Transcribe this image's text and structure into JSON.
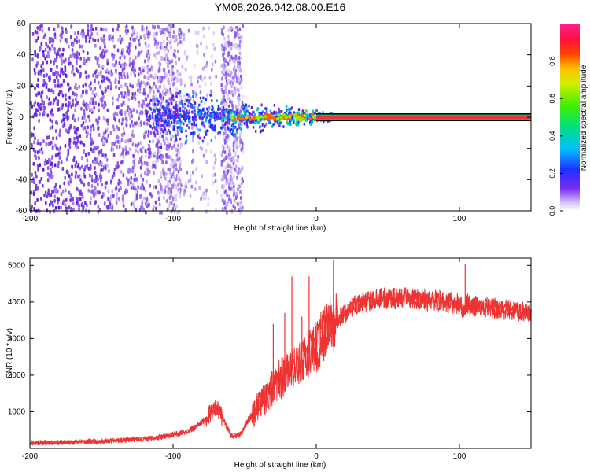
{
  "title": "YM08.2026.042.08.00.E16",
  "colors": {
    "line": "#ee3333",
    "axis": "#000000",
    "scatter_hue": "#6a2ce0",
    "band_outline": "#000000",
    "band_fill": "#e8353a"
  },
  "chart_data": [
    {
      "type": "heatmap",
      "name": "spectrogram",
      "xlabel": "Height of straight line (km)",
      "ylabel": "Frequency (Hz)",
      "xlim": [
        -200,
        150
      ],
      "ylim": [
        -60,
        60
      ],
      "xticks": [
        -200,
        -100,
        0,
        100
      ],
      "yticks": [
        -60,
        -40,
        -20,
        0,
        20,
        40,
        60
      ],
      "xtick_labels": [
        "-200",
        "-100",
        "0",
        "100"
      ],
      "ytick_labels": [
        "-60",
        "-40",
        "-20",
        "0",
        "20",
        "40",
        "60"
      ],
      "features": {
        "carrier_frequency_hz": 0,
        "carrier_band_start_km": 0,
        "noise_region_km": [
          -200,
          -110
        ],
        "transition_region_km": [
          -120,
          15
        ],
        "vertical_noise_strip_km": [
          -67,
          -52
        ]
      },
      "colorbar": {
        "label": "Normalized spectral amplitude",
        "range": [
          0,
          1
        ],
        "ticks": [
          0.0,
          0.2,
          0.4,
          0.6,
          0.8
        ],
        "tick_labels": [
          "0.0",
          "0.2",
          "0.4",
          "0.6",
          "0.8"
        ]
      }
    },
    {
      "type": "line",
      "name": "snr",
      "xlabel": "Height of straight line (km)",
      "ylabel": "SNR (10 * v/v)",
      "xlim": [
        -200,
        150
      ],
      "ylim": [
        0,
        5200
      ],
      "xticks": [
        -200,
        -100,
        0,
        100
      ],
      "yticks": [
        1000,
        2000,
        3000,
        4000,
        5000
      ],
      "xtick_labels": [
        "-200",
        "-100",
        "0",
        "100"
      ],
      "ytick_labels": [
        "1000",
        "2000",
        "3000",
        "4000",
        "5000"
      ],
      "x": [
        -200,
        -180,
        -160,
        -140,
        -120,
        -110,
        -100,
        -95,
        -90,
        -85,
        -80,
        -75,
        -70,
        -68,
        -65,
        -62,
        -60,
        -58,
        -55,
        -52,
        -50,
        -47,
        -45,
        -42,
        -40,
        -37,
        -35,
        -32,
        -30,
        -27,
        -25,
        -22,
        -20,
        -17,
        -15,
        -12,
        -10,
        -7,
        -5,
        -2,
        0,
        5,
        10,
        15,
        20,
        25,
        30,
        35,
        40,
        50,
        60,
        70,
        80,
        90,
        100,
        103,
        105,
        110,
        120,
        130,
        140,
        150
      ],
      "y": [
        150,
        160,
        180,
        210,
        260,
        300,
        370,
        420,
        480,
        560,
        700,
        900,
        1100,
        1000,
        800,
        550,
        380,
        330,
        340,
        420,
        600,
        800,
        900,
        1050,
        1150,
        1300,
        1400,
        1550,
        1650,
        1800,
        1900,
        2000,
        2100,
        2200,
        2250,
        2300,
        2400,
        2500,
        2600,
        2700,
        2800,
        3100,
        3300,
        3550,
        3700,
        3850,
        3950,
        4000,
        4050,
        4100,
        4100,
        4080,
        4060,
        4000,
        3950,
        3700,
        3950,
        3900,
        3850,
        3800,
        3750,
        3700
      ],
      "spikes": [
        {
          "x": -30,
          "y": 3400
        },
        {
          "x": -22,
          "y": 3700
        },
        {
          "x": -17,
          "y": 4700
        },
        {
          "x": -10,
          "y": 3600
        },
        {
          "x": -5,
          "y": 4700
        },
        {
          "x": 4,
          "y": 3000
        },
        {
          "x": 12,
          "y": 5150
        },
        {
          "x": 104,
          "y": 5050
        }
      ]
    }
  ]
}
